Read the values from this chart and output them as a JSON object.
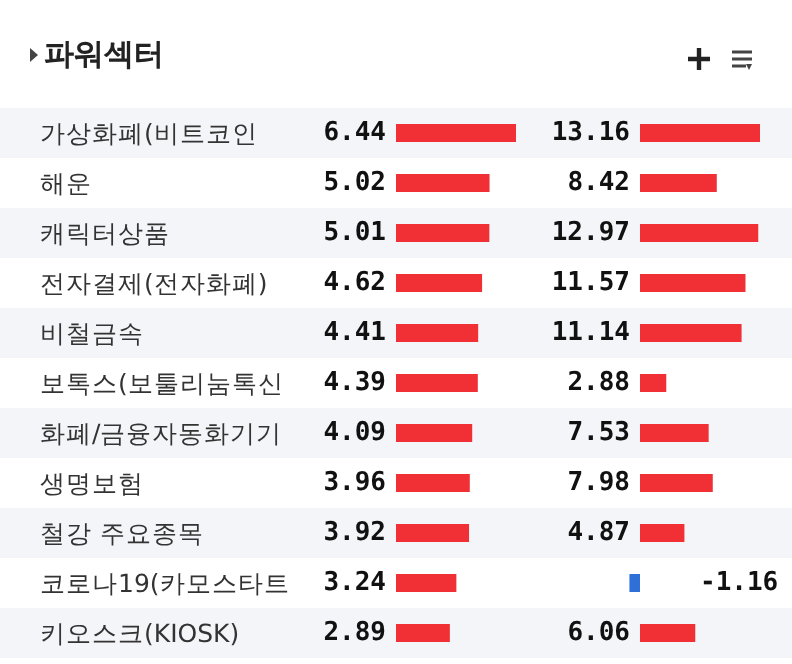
{
  "chart_data": [
    {
      "type": "bar",
      "title": "파워섹터",
      "orientation": "horizontal",
      "data_labels": true,
      "color": "#f03034",
      "categories": [
        "가상화폐(비트코인",
        "해운",
        "캐릭터상품",
        "전자결제(전자화폐)",
        "비철금속",
        "보톡스(보툴리눔톡신",
        "화폐/금융자동화기기",
        "생명보험",
        "철강 주요종목",
        "코로나19(카모스타트",
        "키오스크(KIOSK)"
      ],
      "values": [
        6.44,
        5.02,
        5.01,
        4.62,
        4.41,
        4.39,
        4.09,
        3.96,
        3.92,
        3.24,
        2.89
      ]
    },
    {
      "type": "bar",
      "orientation": "horizontal",
      "data_labels": true,
      "categories": [
        null,
        null,
        null,
        null,
        null,
        null,
        null,
        null,
        null,
        null,
        null
      ],
      "values": [
        13.16,
        8.42,
        12.97,
        11.57,
        11.14,
        2.88,
        7.53,
        7.98,
        4.87,
        -1.16,
        6.06
      ],
      "colors": [
        "#f03034",
        "#f03034",
        "#f03034",
        "#f03034",
        "#f03034",
        "#f03034",
        "#f03034",
        "#f03034",
        "#f03034",
        "#2f6fd8",
        "#f03034"
      ]
    }
  ]
}
